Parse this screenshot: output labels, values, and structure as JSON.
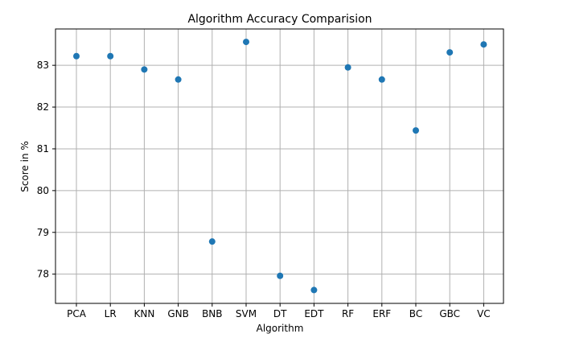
{
  "chart_data": {
    "type": "scatter",
    "title": "Algorithm Accuracy Comparision",
    "xlabel": "Algorithm",
    "ylabel": "Score in %",
    "categories": [
      "PCA",
      "LR",
      "KNN",
      "GNB",
      "BNB",
      "SVM",
      "DT",
      "EDT",
      "RF",
      "ERF",
      "BC",
      "GBC",
      "VC"
    ],
    "values": [
      83.22,
      83.22,
      82.9,
      82.66,
      78.78,
      83.56,
      77.96,
      77.62,
      82.95,
      82.66,
      81.44,
      83.31,
      83.5
    ],
    "yticks": [
      78,
      79,
      80,
      81,
      82,
      83
    ],
    "ylim": [
      77.3,
      83.87
    ],
    "grid": true,
    "color": "#1f77b4"
  }
}
